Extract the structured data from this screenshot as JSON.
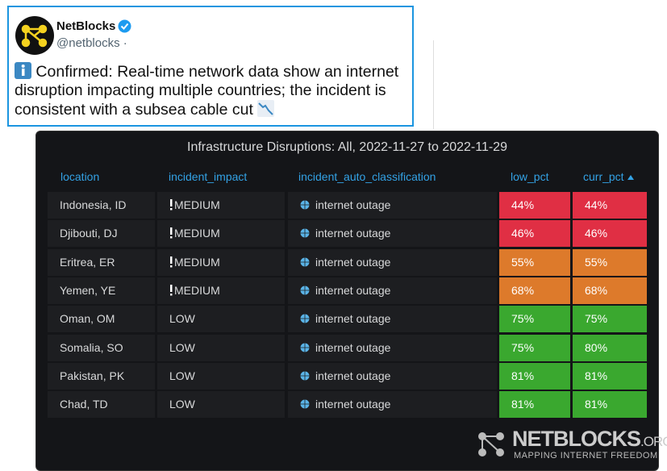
{
  "tweet": {
    "name": "NetBlocks",
    "handle": "@netblocks ·",
    "text": "Confirmed: Real-time network data show an internet disruption impacting multiple countries; the incident is consistent with a subsea cable cut"
  },
  "table": {
    "title": "Infrastructure Disruptions: All, 2022-11-27 to 2022-11-29",
    "headers": [
      "location",
      "incident_impact",
      "incident_auto_classification",
      "low_pct",
      "curr_pct"
    ],
    "rows": [
      [
        "Indonesia, ID",
        "MEDIUM",
        "internet outage",
        "44%",
        "44%"
      ],
      [
        "Djibouti, DJ",
        "MEDIUM",
        "internet outage",
        "46%",
        "46%"
      ],
      [
        "Eritrea, ER",
        "MEDIUM",
        "internet outage",
        "55%",
        "55%"
      ],
      [
        "Yemen, YE",
        "MEDIUM",
        "internet outage",
        "68%",
        "68%"
      ],
      [
        "Oman, OM",
        "LOW",
        "internet outage",
        "75%",
        "75%"
      ],
      [
        "Somalia, SO",
        "LOW",
        "internet outage",
        "75%",
        "80%"
      ],
      [
        "Pakistan, PK",
        "LOW",
        "internet outage",
        "81%",
        "81%"
      ],
      [
        "Chad, TD",
        "LOW",
        "internet outage",
        "81%",
        "81%"
      ]
    ],
    "cell_colors": [
      [
        "#e02f44",
        "#e02f44"
      ],
      [
        "#e02f44",
        "#e02f44"
      ],
      [
        "#dd7a2b",
        "#dd7a2b"
      ],
      [
        "#dd7a2b",
        "#dd7a2b"
      ],
      [
        "#3aa82f",
        "#3aa82f"
      ],
      [
        "#3aa82f",
        "#3aa82f"
      ],
      [
        "#3aa82f",
        "#3aa82f"
      ],
      [
        "#3aa82f",
        "#3aa82f"
      ]
    ]
  },
  "watermark": {
    "brand": "NETBLOCKS",
    "domain": ".ORG",
    "tagline": "MAPPING INTERNET FREEDOM"
  }
}
